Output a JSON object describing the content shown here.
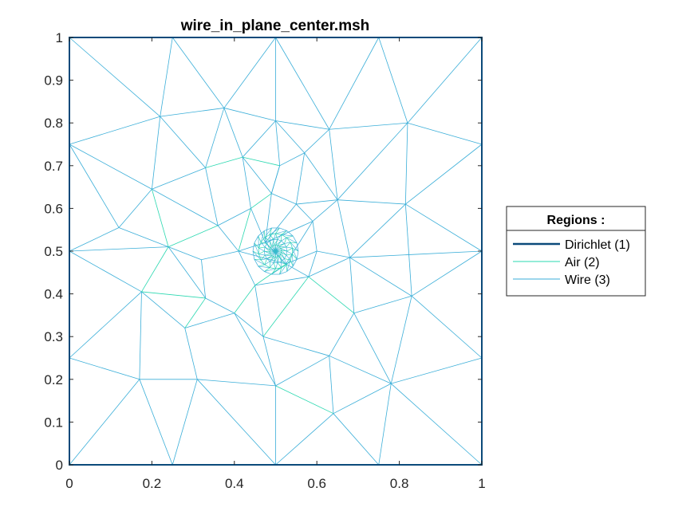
{
  "chart_data": {
    "type": "mesh",
    "title": "wire_in_plane_center.msh",
    "xlabel": "",
    "ylabel": "",
    "xlim": [
      0,
      1
    ],
    "ylim": [
      0,
      1
    ],
    "x_ticks": [
      "0",
      "0.2",
      "0.4",
      "0.6",
      "0.8",
      "1"
    ],
    "x_tick_values": [
      0,
      0.2,
      0.4,
      0.6,
      0.8,
      1
    ],
    "y_ticks": [
      "0",
      "0.1",
      "0.2",
      "0.3",
      "0.4",
      "0.5",
      "0.6",
      "0.7",
      "0.8",
      "0.9",
      "1"
    ],
    "y_tick_values": [
      0,
      0.1,
      0.2,
      0.3,
      0.4,
      0.5,
      0.6,
      0.7,
      0.8,
      0.9,
      1
    ],
    "legend": {
      "title": "Regions :",
      "position": "right",
      "entries": [
        {
          "label": "Dirichlet (1)",
          "color": "#0b4a7a",
          "style": "thick"
        },
        {
          "label": "Air (2)",
          "color": "#2ad8b0",
          "style": "thin"
        },
        {
          "label": "Wire (3)",
          "color": "#3aaed8",
          "style": "thin"
        }
      ]
    },
    "colors": {
      "boundary": "#0b4a7a",
      "air": "#2ad8b0",
      "wire": "#3aaed8",
      "mesh": "#3aaed8"
    },
    "nodes": [
      [
        0,
        0
      ],
      [
        0.25,
        0
      ],
      [
        0.5,
        0
      ],
      [
        0.75,
        0
      ],
      [
        1,
        0
      ],
      [
        1,
        0.25
      ],
      [
        1,
        0.5
      ],
      [
        1,
        0.75
      ],
      [
        1,
        1
      ],
      [
        0.75,
        1
      ],
      [
        0.5,
        1
      ],
      [
        0.25,
        1
      ],
      [
        0,
        1
      ],
      [
        0,
        0.75
      ],
      [
        0,
        0.5
      ],
      [
        0,
        0.25
      ],
      [
        0.22,
        0.815
      ],
      [
        0.375,
        0.835
      ],
      [
        0.5,
        0.805
      ],
      [
        0.63,
        0.785
      ],
      [
        0.82,
        0.8
      ],
      [
        0.2,
        0.645
      ],
      [
        0.33,
        0.695
      ],
      [
        0.42,
        0.72
      ],
      [
        0.51,
        0.7
      ],
      [
        0.57,
        0.73
      ],
      [
        0.815,
        0.61
      ],
      [
        0.12,
        0.555
      ],
      [
        0.24,
        0.51
      ],
      [
        0.175,
        0.405
      ],
      [
        0.33,
        0.39
      ],
      [
        0.28,
        0.32
      ],
      [
        0.4,
        0.355
      ],
      [
        0.47,
        0.3
      ],
      [
        0.69,
        0.355
      ],
      [
        0.83,
        0.395
      ],
      [
        0.68,
        0.485
      ],
      [
        0.65,
        0.62
      ],
      [
        0.17,
        0.2
      ],
      [
        0.31,
        0.2
      ],
      [
        0.5,
        0.185
      ],
      [
        0.63,
        0.255
      ],
      [
        0.78,
        0.19
      ],
      [
        0.64,
        0.12
      ],
      [
        0.49,
        0.635
      ],
      [
        0.44,
        0.6
      ],
      [
        0.41,
        0.5
      ],
      [
        0.45,
        0.42
      ],
      [
        0.58,
        0.44
      ],
      [
        0.59,
        0.57
      ],
      [
        0.36,
        0.56
      ],
      [
        0.32,
        0.48
      ],
      [
        0.55,
        0.61
      ],
      [
        0.6,
        0.5
      ],
      [
        0.525,
        0.47
      ],
      [
        0.475,
        0.52
      ]
    ],
    "edges": [
      [
        0,
        1
      ],
      [
        1,
        2
      ],
      [
        2,
        3
      ],
      [
        3,
        4
      ],
      [
        4,
        5
      ],
      [
        5,
        6
      ],
      [
        6,
        7
      ],
      [
        7,
        8
      ],
      [
        8,
        9
      ],
      [
        9,
        10
      ],
      [
        10,
        11
      ],
      [
        11,
        12
      ],
      [
        12,
        13
      ],
      [
        13,
        14
      ],
      [
        14,
        15
      ],
      [
        15,
        0
      ],
      [
        12,
        16
      ],
      [
        11,
        16
      ],
      [
        11,
        17
      ],
      [
        10,
        17
      ],
      [
        10,
        18
      ],
      [
        10,
        19
      ],
      [
        9,
        19
      ],
      [
        9,
        20
      ],
      [
        8,
        20
      ],
      [
        7,
        20
      ],
      [
        13,
        16
      ],
      [
        16,
        17
      ],
      [
        17,
        18
      ],
      [
        18,
        19
      ],
      [
        19,
        20
      ],
      [
        16,
        21
      ],
      [
        16,
        22
      ],
      [
        17,
        22
      ],
      [
        17,
        23
      ],
      [
        18,
        23
      ],
      [
        18,
        24
      ],
      [
        18,
        25
      ],
      [
        19,
        25
      ],
      [
        19,
        37
      ],
      [
        20,
        26
      ],
      [
        20,
        37
      ],
      [
        7,
        26
      ],
      [
        6,
        26
      ],
      [
        6,
        35
      ],
      [
        5,
        35
      ],
      [
        5,
        42
      ],
      [
        4,
        42
      ],
      [
        13,
        21
      ],
      [
        13,
        27
      ],
      [
        14,
        27
      ],
      [
        14,
        28
      ],
      [
        14,
        29
      ],
      [
        15,
        29
      ],
      [
        15,
        38
      ],
      [
        0,
        38
      ],
      [
        1,
        38
      ],
      [
        1,
        39
      ],
      [
        2,
        39
      ],
      [
        2,
        40
      ],
      [
        2,
        43
      ],
      [
        3,
        43
      ],
      [
        3,
        42
      ],
      [
        42,
        43
      ],
      [
        35,
        42
      ],
      [
        26,
        35
      ],
      [
        26,
        37
      ],
      [
        35,
        34
      ],
      [
        34,
        42
      ],
      [
        41,
        42
      ],
      [
        41,
        43
      ],
      [
        40,
        43
      ],
      [
        40,
        41
      ],
      [
        39,
        40
      ],
      [
        38,
        39
      ],
      [
        29,
        38
      ],
      [
        29,
        31
      ],
      [
        31,
        39
      ],
      [
        31,
        32
      ],
      [
        32,
        40
      ],
      [
        32,
        33
      ],
      [
        33,
        40
      ],
      [
        33,
        41
      ],
      [
        34,
        41
      ],
      [
        36,
        34
      ],
      [
        36,
        26
      ],
      [
        36,
        35
      ],
      [
        36,
        37
      ],
      [
        36,
        6
      ],
      [
        21,
        22
      ],
      [
        22,
        23
      ],
      [
        23,
        24
      ],
      [
        24,
        25
      ],
      [
        25,
        37
      ],
      [
        21,
        27
      ],
      [
        27,
        28
      ],
      [
        28,
        29
      ],
      [
        28,
        21
      ],
      [
        28,
        30
      ],
      [
        29,
        30
      ],
      [
        30,
        31
      ],
      [
        30,
        32
      ],
      [
        32,
        47
      ],
      [
        33,
        47
      ],
      [
        33,
        48
      ],
      [
        34,
        48
      ],
      [
        48,
        36
      ],
      [
        37,
        49
      ],
      [
        37,
        52
      ],
      [
        25,
        52
      ],
      [
        24,
        44
      ],
      [
        23,
        45
      ],
      [
        22,
        50
      ],
      [
        21,
        50
      ],
      [
        28,
        50
      ],
      [
        28,
        51
      ],
      [
        30,
        51
      ],
      [
        51,
        46
      ],
      [
        50,
        46
      ],
      [
        45,
        46
      ],
      [
        44,
        45
      ],
      [
        44,
        52
      ],
      [
        52,
        49
      ],
      [
        49,
        53
      ],
      [
        53,
        36
      ],
      [
        53,
        48
      ],
      [
        48,
        47
      ],
      [
        47,
        46
      ],
      [
        45,
        50
      ],
      [
        44,
        24
      ],
      [
        23,
        44
      ],
      [
        54,
        55
      ],
      [
        46,
        55
      ],
      [
        45,
        55
      ],
      [
        44,
        55
      ],
      [
        52,
        55
      ],
      [
        49,
        54
      ],
      [
        53,
        54
      ],
      [
        48,
        54
      ],
      [
        47,
        54
      ],
      [
        46,
        54
      ],
      [
        55,
        49
      ]
    ],
    "fine_center": [
      0.5,
      0.5
    ],
    "fine_radius": 0.055
  }
}
